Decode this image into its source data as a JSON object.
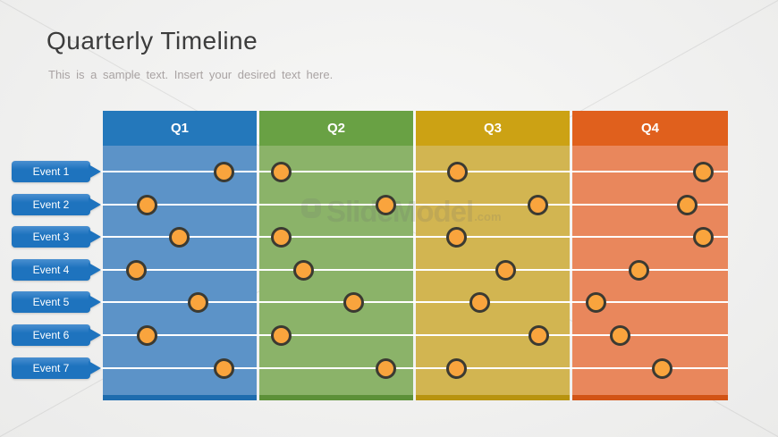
{
  "slide": {
    "title": "Quarterly Timeline",
    "subtitle": "This is a sample text. Insert your desired text here."
  },
  "watermark": {
    "text": "SlideModel",
    "suffix": ".com"
  },
  "colors": {
    "marker_fill": "#F9A43D",
    "marker_border": "#3B3A32",
    "event_tag_top": "#4A90D0",
    "event_tag": "#1E73BE",
    "row_line": "#FFFFFF",
    "title_text": "#3C3C3C",
    "subtitle_text": "#A9A3A3",
    "background": "#F1F1F0"
  },
  "timeline": {
    "type": "timeline-matrix",
    "quarters": [
      {
        "label": "Q1",
        "header_color": "#2478BB",
        "body_color": "#5C93C8",
        "strip_color": "#1E6CAE"
      },
      {
        "label": "Q2",
        "header_color": "#69A144",
        "body_color": "#8BB369",
        "strip_color": "#5C9038"
      },
      {
        "label": "Q3",
        "header_color": "#CCA214",
        "body_color": "#D2B551",
        "strip_color": "#B8930F"
      },
      {
        "label": "Q4",
        "header_color": "#E0601D",
        "body_color": "#E9875C",
        "strip_color": "#D25315"
      }
    ],
    "events": [
      {
        "label": "Event 1",
        "marker_pct_of_quarter": [
          78.5,
          14.5,
          27.0,
          84.0
        ]
      },
      {
        "label": "Event 2",
        "marker_pct_of_quarter": [
          28.5,
          82.0,
          79.5,
          74.0
        ]
      },
      {
        "label": "Event 3",
        "marker_pct_of_quarter": [
          49.5,
          14.5,
          26.5,
          84.0
        ]
      },
      {
        "label": "Event 4",
        "marker_pct_of_quarter": [
          22.0,
          29.0,
          58.5,
          43.0
        ]
      },
      {
        "label": "Event 5",
        "marker_pct_of_quarter": [
          62.0,
          61.5,
          41.5,
          15.0
        ]
      },
      {
        "label": "Event 6",
        "marker_pct_of_quarter": [
          28.5,
          14.5,
          80.0,
          31.0
        ]
      },
      {
        "label": "Event 7",
        "marker_pct_of_quarter": [
          78.5,
          82.5,
          26.5,
          57.5
        ]
      }
    ]
  }
}
